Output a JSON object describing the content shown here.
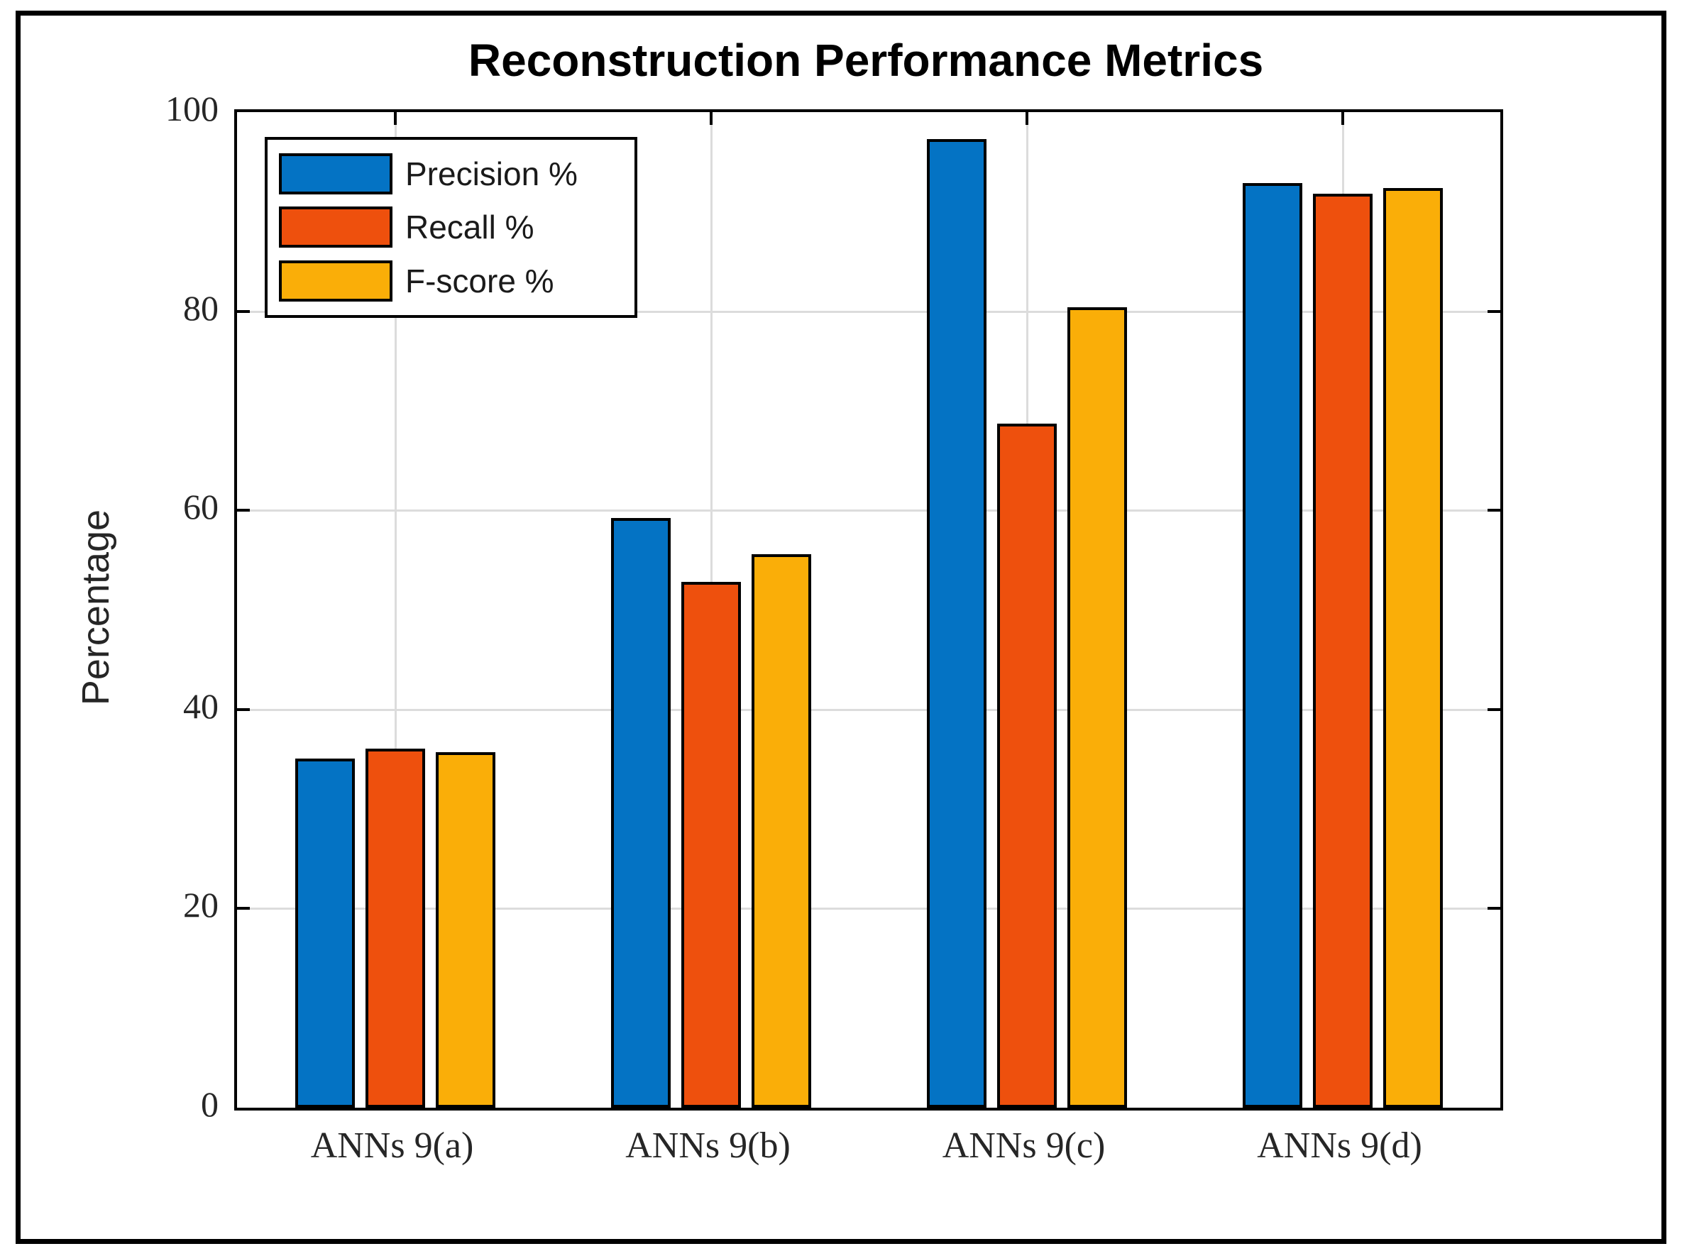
{
  "figure": {
    "background": "#ffffff",
    "border_color": "#000000"
  },
  "chart_data": {
    "type": "bar",
    "title": "Reconstruction Performance Metrics",
    "ylabel": "Percentage",
    "xlabel": "",
    "categories": [
      "ANNs 9(a)",
      "ANNs 9(b)",
      "ANNs 9(c)",
      "ANNs 9(d)"
    ],
    "series": [
      {
        "name": "Precision %",
        "color": "#0473C4",
        "values": [
          35.1,
          59.2,
          97.3,
          92.9
        ]
      },
      {
        "name": "Recall %",
        "color": "#EE500D",
        "values": [
          36.1,
          52.8,
          68.7,
          91.8
        ]
      },
      {
        "name": "F-score %",
        "color": "#FAAE08",
        "values": [
          35.7,
          55.6,
          80.4,
          92.4
        ]
      }
    ],
    "ylim": [
      0,
      100
    ],
    "yticks": [
      0,
      20,
      40,
      60,
      80,
      100
    ],
    "grid": "both",
    "grid_color": "#dcdcdc",
    "axis_color": "#000000",
    "bar_edge_color": "#000000",
    "legend_position": "top-left-inside"
  }
}
